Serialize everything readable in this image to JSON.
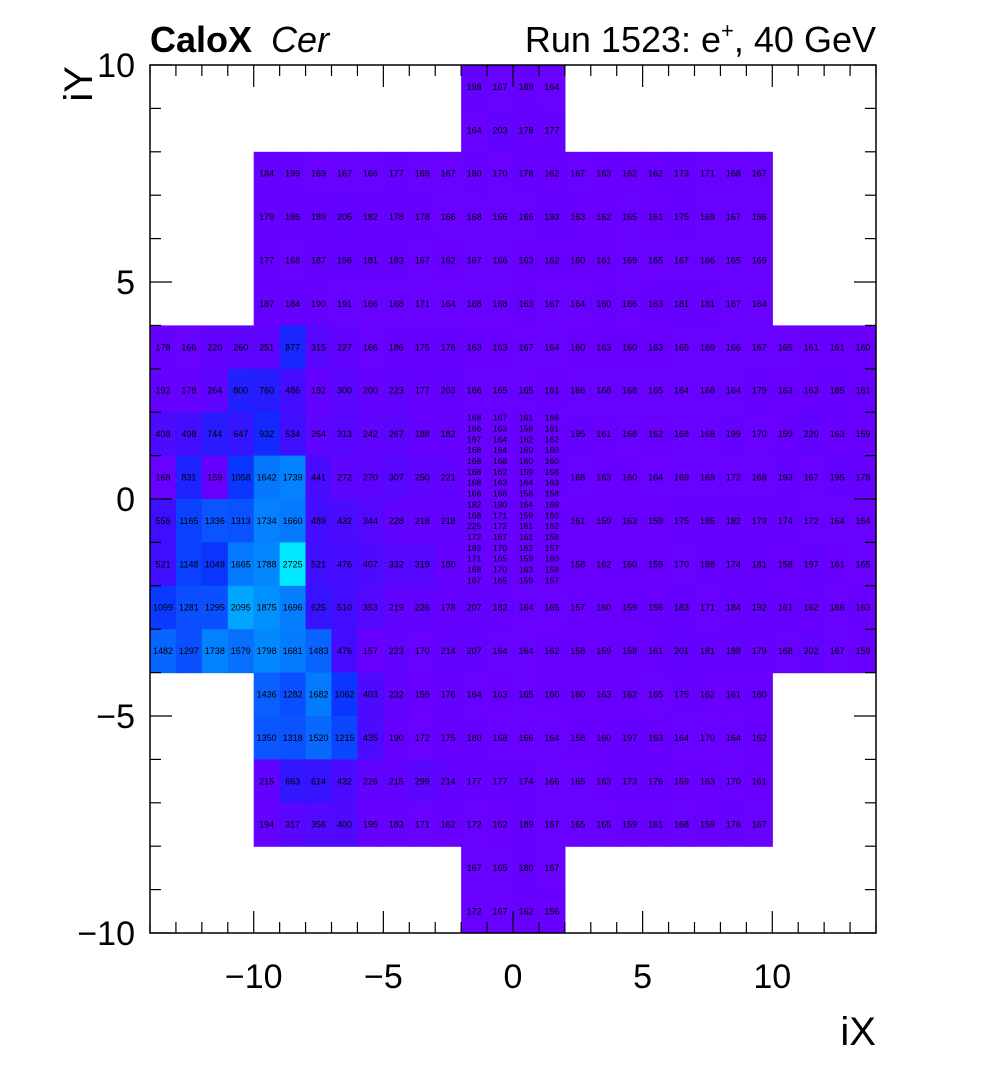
{
  "header": {
    "title_bold": "CaloX",
    "title_italic": "Cer",
    "run_prefix": "Run 1523: e",
    "run_sup": "+",
    "run_suffix": ", 40 GeV"
  },
  "chart_data": {
    "type": "heatmap",
    "xlabel": "iX",
    "ylabel": "iY",
    "xlim": [
      -14,
      14
    ],
    "ylim": [
      -10,
      10
    ],
    "x_ticks": [
      -10,
      -5,
      0,
      5,
      10
    ],
    "x_tick_labels": [
      "−10",
      "−5",
      "0",
      "5",
      "10"
    ],
    "y_ticks": [
      -10,
      -5,
      0,
      5,
      10
    ],
    "y_tick_labels": [
      "−10",
      "−5",
      "0",
      "5",
      "10"
    ],
    "color_stops": [
      "#6a00ff",
      "#3b10ff",
      "#0a30ff",
      "#0a60ff",
      "#0090ff",
      "#00b8ff",
      "#00e8ff"
    ],
    "color_range": [
      150,
      2725
    ],
    "fine_region_x": [
      -2,
      2
    ],
    "fine_region_y": [
      -2,
      2
    ],
    "grid": false,
    "legend": "none",
    "rows": [
      {
        "iy": 9,
        "ix0": -2,
        "values": [
          198,
          167,
          189,
          164
        ]
      },
      {
        "iy": 8,
        "ix0": -2,
        "values": [
          164,
          203,
          178,
          177
        ]
      },
      {
        "iy": 7,
        "ix0": -10,
        "values": [
          184,
          199,
          169,
          167,
          166,
          177,
          169,
          167,
          180,
          170,
          178,
          162,
          167,
          163,
          162,
          162,
          173,
          171,
          168,
          167
        ]
      },
      {
        "iy": 6,
        "ix0": -10,
        "values": [
          179,
          186,
          189,
          205,
          182,
          178,
          178,
          166,
          168,
          166,
          166,
          193,
          163,
          162,
          165,
          161,
          175,
          169,
          167,
          166
        ]
      },
      {
        "iy": 5,
        "ix0": -10,
        "values": [
          177,
          168,
          187,
          196,
          181,
          183,
          167,
          162,
          167,
          166,
          163,
          162,
          160,
          161,
          169,
          165,
          167,
          166,
          165,
          169
        ]
      },
      {
        "iy": 4,
        "ix0": -10,
        "values": [
          187,
          184,
          190,
          191,
          166,
          168,
          171,
          164,
          168,
          168,
          163,
          167,
          164,
          160,
          166,
          163,
          181,
          181,
          167,
          164
        ]
      },
      {
        "iy": 3,
        "ix0": -14,
        "values": [
          178,
          166,
          220,
          260,
          251,
          877,
          315,
          227,
          166,
          186,
          175,
          176,
          163,
          163,
          167,
          164,
          160,
          163,
          160,
          163,
          165,
          169,
          166,
          167,
          165,
          161,
          161,
          160
        ]
      },
      {
        "iy": 2,
        "ix0": -14,
        "values": [
          192,
          178,
          264,
          800,
          760,
          486,
          192,
          300,
          200,
          223,
          177,
          203,
          166,
          165,
          165,
          161,
          166,
          168,
          168,
          165,
          164,
          168,
          164,
          179,
          163,
          163,
          185,
          161
        ]
      },
      {
        "iy": 1,
        "ix0": -14,
        "values": [
          408,
          498,
          744,
          647,
          932,
          534,
          264,
          313,
          242,
          267,
          188,
          182,
          null,
          null,
          null,
          null,
          195,
          161,
          168,
          162,
          168,
          168,
          199,
          170,
          159,
          220,
          163,
          159
        ]
      },
      {
        "iy": 0,
        "ix0": -14,
        "values": [
          168,
          831,
          159,
          1058,
          1642,
          1739,
          441,
          272,
          270,
          307,
          250,
          221,
          null,
          null,
          null,
          null,
          168,
          163,
          160,
          164,
          169,
          169,
          172,
          168,
          193,
          167,
          195,
          178
        ]
      },
      {
        "iy": -1,
        "ix0": -14,
        "values": [
          556,
          1165,
          1336,
          1313,
          1734,
          1660,
          489,
          432,
          344,
          228,
          218,
          218,
          null,
          null,
          null,
          null,
          161,
          159,
          163,
          159,
          175,
          185,
          182,
          179,
          174,
          172,
          164,
          164
        ]
      },
      {
        "iy": -2,
        "ix0": -14,
        "values": [
          521,
          1148,
          1049,
          1665,
          1788,
          2725,
          521,
          476,
          407,
          332,
          319,
          180,
          null,
          null,
          null,
          null,
          158,
          162,
          160,
          159,
          170,
          188,
          174,
          181,
          158,
          197,
          161,
          165
        ]
      },
      {
        "iy": -3,
        "ix0": -14,
        "values": [
          1099,
          1281,
          1295,
          2095,
          1875,
          1696,
          625,
          510,
          353,
          219,
          226,
          178,
          207,
          182,
          164,
          165,
          157,
          160,
          159,
          156,
          183,
          171,
          184,
          192,
          161,
          162,
          166,
          163
        ]
      },
      {
        "iy": -4,
        "ix0": -14,
        "values": [
          1482,
          1297,
          1738,
          1579,
          1798,
          1681,
          1483,
          476,
          157,
          223,
          170,
          214,
          207,
          164,
          164,
          162,
          158,
          159,
          158,
          161,
          201,
          181,
          188,
          179,
          168,
          202,
          167,
          159
        ]
      },
      {
        "iy": -5,
        "ix0": -10,
        "values": [
          1436,
          1282,
          1682,
          1062,
          403,
          232,
          159,
          176,
          164,
          163,
          165,
          160,
          160,
          163,
          162,
          165,
          175,
          162,
          161,
          160
        ]
      },
      {
        "iy": -6,
        "ix0": -10,
        "values": [
          1350,
          1318,
          1520,
          1215,
          435,
          190,
          172,
          175,
          180,
          168,
          166,
          164,
          158,
          160,
          197,
          163,
          164,
          170,
          164,
          162
        ]
      },
      {
        "iy": -7,
        "ix0": -10,
        "values": [
          215,
          663,
          614,
          432,
          226,
          215,
          299,
          214,
          177,
          177,
          174,
          166,
          165,
          163,
          173,
          176,
          159,
          163,
          170,
          161
        ]
      },
      {
        "iy": -8,
        "ix0": -10,
        "values": [
          194,
          317,
          356,
          400,
          195,
          183,
          171,
          162,
          172,
          162,
          189,
          167,
          165,
          165,
          159,
          161,
          168,
          159,
          176,
          167
        ]
      },
      {
        "iy": -9,
        "ix0": -2,
        "values": [
          167,
          165,
          180,
          167
        ]
      },
      {
        "iy": -10,
        "ix0": -2,
        "values": [
          172,
          167,
          162,
          156
        ]
      }
    ],
    "fine_rows": [
      [
        168,
        167,
        161,
        166
      ],
      [
        166,
        163,
        158,
        161
      ],
      [
        167,
        164,
        162,
        162
      ],
      [
        168,
        164,
        160,
        160
      ],
      [
        168,
        168,
        160,
        160
      ],
      [
        168,
        162,
        159,
        158
      ],
      [
        168,
        163,
        164,
        163
      ],
      [
        166,
        166,
        158,
        158
      ],
      [
        182,
        190,
        164,
        169
      ],
      [
        168,
        171,
        159,
        160
      ],
      [
        225,
        172,
        161,
        162
      ],
      [
        172,
        167,
        161,
        158
      ],
      [
        183,
        170,
        162,
        157
      ],
      [
        171,
        165,
        159,
        160
      ],
      [
        168,
        170,
        163,
        158
      ],
      [
        167,
        165,
        159,
        157
      ]
    ]
  }
}
